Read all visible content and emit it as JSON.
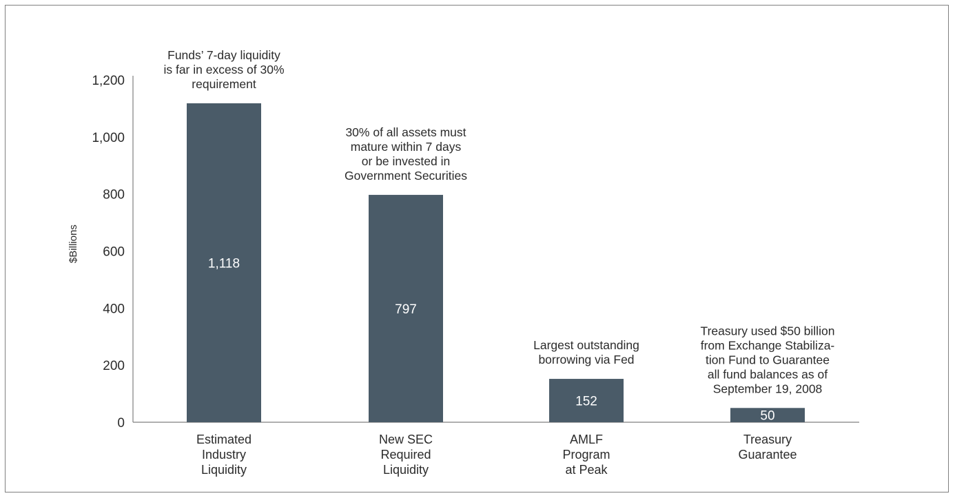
{
  "chart_data": {
    "type": "bar",
    "ylabel": "$Billions",
    "ylim": [
      0,
      1200
    ],
    "yticks": [
      "0",
      "200",
      "400",
      "600",
      "800",
      "1,000",
      "1,200"
    ],
    "yticks_values": [
      0,
      200,
      400,
      600,
      800,
      1000,
      1200
    ],
    "grid": false,
    "bar_color": "#4a5b68",
    "categories": [
      [
        "Estimated",
        "Industry",
        "Liquidity"
      ],
      [
        "New SEC",
        "Required",
        "Liquidity"
      ],
      [
        "AMLF",
        "Program",
        "at Peak"
      ],
      [
        "Treasury",
        "Guarantee"
      ]
    ],
    "values": [
      1118,
      797,
      152,
      50
    ],
    "value_labels": [
      "1,118",
      "797",
      "152",
      "50"
    ],
    "annotations": [
      [
        "Funds’ 7-day liquidity",
        "is far in excess of 30%",
        "requirement"
      ],
      [
        "30% of all assets must",
        "mature within 7 days",
        "or be invested in",
        "Government Securities"
      ],
      [
        "Largest outstanding",
        "borrowing via Fed"
      ],
      [
        "Treasury used $50 billion",
        "from Exchange Stabiliza-",
        "tion Fund to Guarantee",
        "all fund balances as of",
        "September 19, 2008"
      ]
    ]
  }
}
